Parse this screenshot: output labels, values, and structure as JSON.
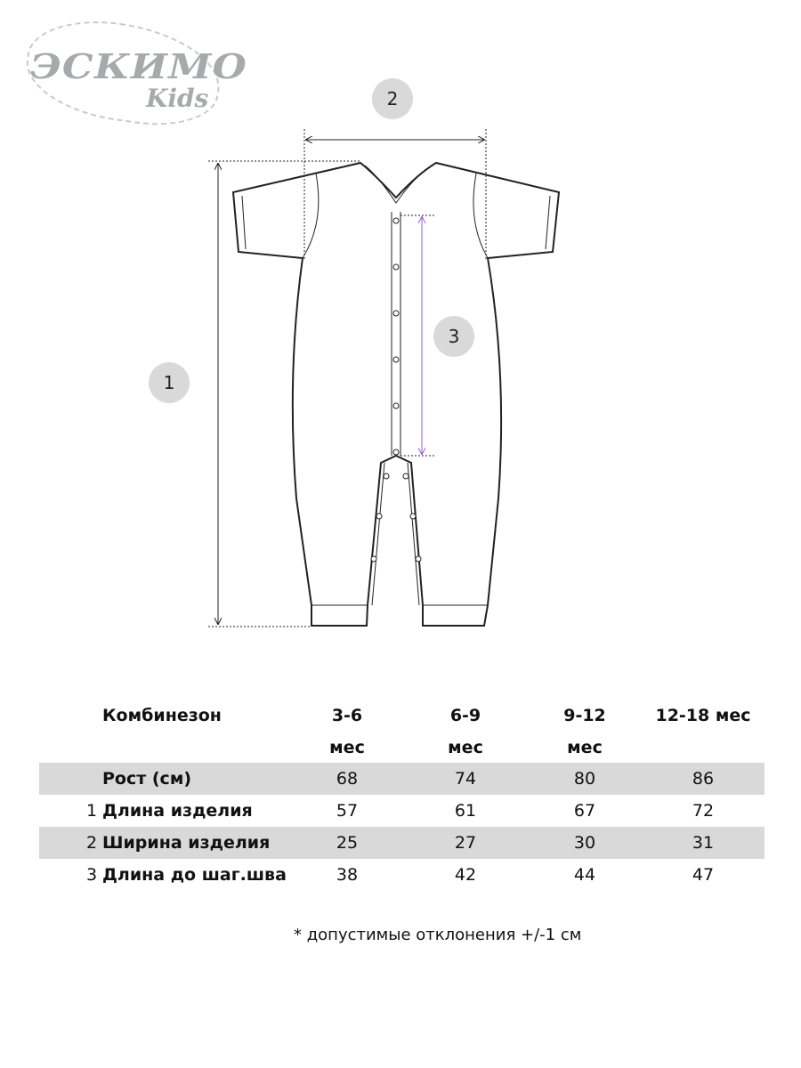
{
  "logo": {
    "main": "ЭСКИМО",
    "sub": "Kids"
  },
  "markers": [
    "1",
    "2",
    "3"
  ],
  "colors": {
    "badge": "#d9d9d9",
    "shade": "#d9d9d9",
    "crotch_arrow": "#9b59d0",
    "logo": "#a7a9ac"
  },
  "table": {
    "title": "Комбинезон",
    "columns": [
      "3-6 мес",
      "6-9 мес",
      "9-12 мес",
      "12-18 мес"
    ],
    "rows": [
      {
        "num": "",
        "label": "Рост (см)",
        "values": [
          "68",
          "74",
          "80",
          "86"
        ]
      },
      {
        "num": "1",
        "label": "Длина изделия",
        "values": [
          "57",
          "61",
          "67",
          "72"
        ]
      },
      {
        "num": "2",
        "label": "Ширина изделия",
        "values": [
          "25",
          "27",
          "30",
          "31"
        ]
      },
      {
        "num": "3",
        "label": "Длина до шаг.шва",
        "values": [
          "38",
          "42",
          "44",
          "47"
        ]
      }
    ]
  },
  "note": "* допустимые отклонения +/-1 см"
}
